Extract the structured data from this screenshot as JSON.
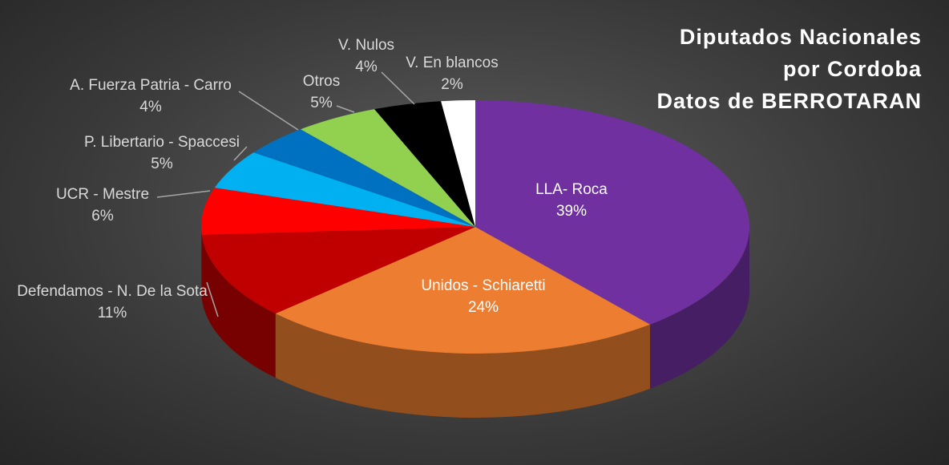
{
  "chart_data": {
    "type": "pie3d",
    "title": [
      "Diputados Nacionales",
      "por Cordoba",
      "Datos de BERROTARAN"
    ],
    "categories": [
      "LLA- Roca",
      "Unidos - Schiaretti",
      "Defendamos - N. De la Sota",
      "UCR - Mestre",
      "P. Libertario - Spaccesi",
      "A. Fuerza Patria - Carro",
      "Otros",
      "V. Nulos",
      "V. En blancos"
    ],
    "values": [
      39,
      24,
      11,
      6,
      5,
      4,
      5,
      4,
      2
    ],
    "value_labels": [
      "39%",
      "24%",
      "11%",
      "6%",
      "5%",
      "4%",
      "5%",
      "4%",
      "2%"
    ],
    "colors": [
      "#7030a0",
      "#ed7d31",
      "#c00000",
      "#ff0000",
      "#00b0f0",
      "#0070c0",
      "#92d050",
      "#000000",
      "#ffffff"
    ]
  }
}
